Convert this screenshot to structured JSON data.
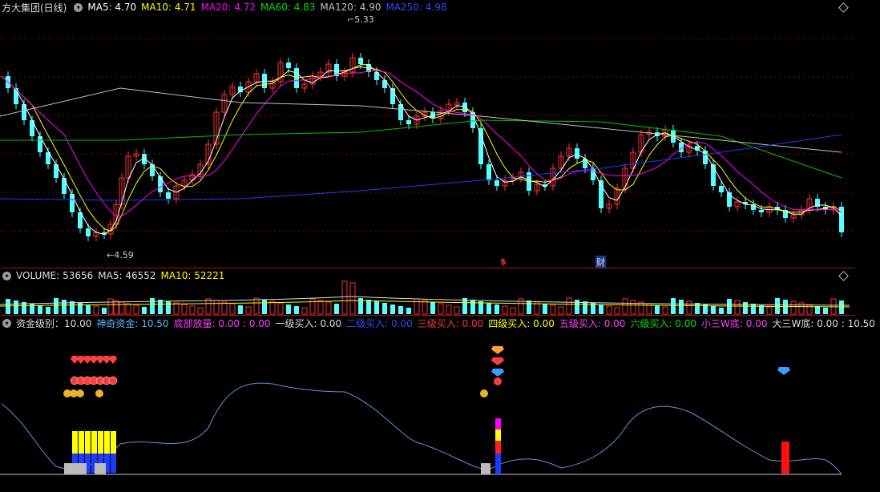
{
  "price_panel": {
    "title": "方大集团(日线)",
    "ma5": "MA5: 4.70",
    "ma10": "MA10: 4.71",
    "ma20": "MA20: 4.72",
    "ma60": "MA60: 4.83",
    "ma120": "MA120: 4.90",
    "ma250": "MA250: 4.98",
    "high_label": "5.33",
    "low_label": "4.59",
    "marker_s": "$",
    "marker_cai": "财"
  },
  "volume_panel": {
    "title": "VOLUME: 53656",
    "ma5": "MA5: 46552",
    "ma10": "MA10: 52221"
  },
  "indicator_panel": {
    "fund_level": "资金级别：10.00",
    "magic_fund": "神奇资金: 10.50",
    "bottom_volume": "底部放量: 0.00 : 0.00",
    "buy1": "一级买入: 0.00",
    "buy2": "二级买入: 0.00",
    "buy3": "三级买入: 0.00",
    "buy4": "四级买入: 0.00",
    "buy5": "五级买入: 0.00",
    "buy6": "六级买入: 0.00",
    "small_w": "小三W底: 0.00",
    "big_w": "大三W底: 0.00 : 10.50"
  },
  "colors": {
    "bull": "#ff3232",
    "bear": "#54ffff",
    "ma5": "#ffffff",
    "ma10": "#ffff00",
    "ma20": "#ff00ff",
    "ma60": "#00c000",
    "ma120": "#c0c0c0",
    "ma250": "#1e3cff"
  },
  "icons": [
    "dropdown-circle-icon",
    "diamond-icon",
    "money-bag-icon",
    "red-ball-icon"
  ]
}
